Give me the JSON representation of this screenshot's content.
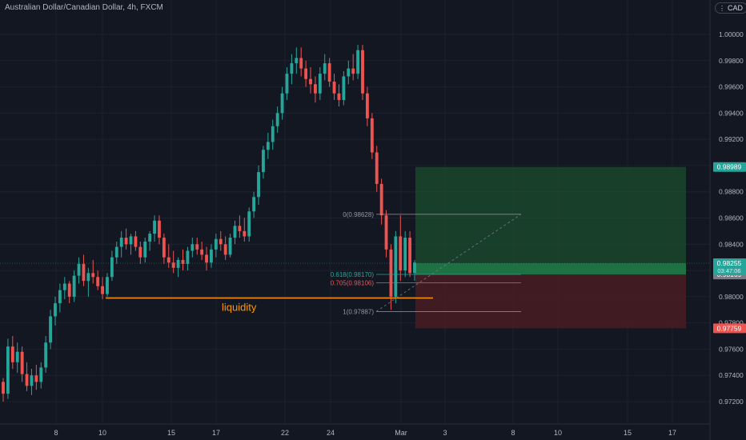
{
  "title": "Australian Dollar/Canadian Dollar, 4h, FXCM",
  "currency": "CAD",
  "currency_icon": "menu-dots-icon",
  "colors": {
    "background": "#131722",
    "up": "#26a69a",
    "down": "#ef5350",
    "grid": "#1e2230",
    "axis_text": "#b2b5be",
    "liquidity": "#ff9800",
    "profit_zone": "#1b4d2c",
    "loss_zone": "#4a1c22"
  },
  "chart_data": {
    "type": "candlestick",
    "x_ticks": [
      "8",
      "10",
      "15",
      "17",
      "22",
      "24",
      "Mar",
      "3",
      "8",
      "10",
      "15",
      "17"
    ],
    "y_ticks": [
      "1.00000",
      "0.99800",
      "0.99600",
      "0.99400",
      "0.99200",
      "0.99000",
      "0.98800",
      "0.98600",
      "0.98400",
      "0.98200",
      "0.98000",
      "0.97800",
      "0.97600",
      "0.97400",
      "0.97200"
    ],
    "ylim": [
      0.971,
      1.0035
    ],
    "candles": [
      [
        0.9735,
        0.9738,
        0.972,
        0.9726
      ],
      [
        0.9726,
        0.9768,
        0.9722,
        0.9762
      ],
      [
        0.9762,
        0.977,
        0.9745,
        0.975
      ],
      [
        0.975,
        0.9765,
        0.9742,
        0.9758
      ],
      [
        0.9758,
        0.9762,
        0.9735,
        0.9741
      ],
      [
        0.9741,
        0.975,
        0.9728,
        0.9732
      ],
      [
        0.9732,
        0.9745,
        0.9725,
        0.974
      ],
      [
        0.974,
        0.9748,
        0.9729,
        0.9735
      ],
      [
        0.9735,
        0.975,
        0.973,
        0.9746
      ],
      [
        0.9746,
        0.977,
        0.9742,
        0.9765
      ],
      [
        0.9765,
        0.979,
        0.976,
        0.9785
      ],
      [
        0.9785,
        0.98,
        0.9778,
        0.9795
      ],
      [
        0.9795,
        0.981,
        0.9788,
        0.9805
      ],
      [
        0.9805,
        0.9815,
        0.9798,
        0.981
      ],
      [
        0.981,
        0.9812,
        0.9795,
        0.98
      ],
      [
        0.98,
        0.982,
        0.9796,
        0.9816
      ],
      [
        0.9816,
        0.983,
        0.981,
        0.9825
      ],
      [
        0.9825,
        0.9832,
        0.9808,
        0.9812
      ],
      [
        0.9812,
        0.9822,
        0.98,
        0.9818
      ],
      [
        0.9818,
        0.9828,
        0.981,
        0.9815
      ],
      [
        0.9815,
        0.982,
        0.9805,
        0.9808
      ],
      [
        0.9808,
        0.9815,
        0.9798,
        0.9802
      ],
      [
        0.9802,
        0.9818,
        0.98,
        0.9815
      ],
      [
        0.9815,
        0.9835,
        0.9812,
        0.983
      ],
      [
        0.983,
        0.9842,
        0.9825,
        0.9838
      ],
      [
        0.9838,
        0.985,
        0.983,
        0.9845
      ],
      [
        0.9845,
        0.9852,
        0.9836,
        0.984
      ],
      [
        0.984,
        0.9848,
        0.9832,
        0.9846
      ],
      [
        0.9846,
        0.985,
        0.9835,
        0.9838
      ],
      [
        0.9838,
        0.9842,
        0.9825,
        0.983
      ],
      [
        0.983,
        0.9845,
        0.9826,
        0.9842
      ],
      [
        0.9842,
        0.985,
        0.9835,
        0.9848
      ],
      [
        0.9848,
        0.9862,
        0.9842,
        0.9858
      ],
      [
        0.9858,
        0.9862,
        0.984,
        0.9845
      ],
      [
        0.9845,
        0.9848,
        0.9825,
        0.983
      ],
      [
        0.983,
        0.984,
        0.9822,
        0.9826
      ],
      [
        0.9826,
        0.9835,
        0.9818,
        0.9822
      ],
      [
        0.9822,
        0.983,
        0.9815,
        0.9828
      ],
      [
        0.9828,
        0.9836,
        0.982,
        0.9825
      ],
      [
        0.9825,
        0.9838,
        0.982,
        0.9835
      ],
      [
        0.9835,
        0.9845,
        0.983,
        0.984
      ],
      [
        0.984,
        0.9845,
        0.9832,
        0.9836
      ],
      [
        0.9836,
        0.9842,
        0.9828,
        0.9832
      ],
      [
        0.9832,
        0.9838,
        0.982,
        0.9826
      ],
      [
        0.9826,
        0.984,
        0.9822,
        0.9836
      ],
      [
        0.9836,
        0.9848,
        0.983,
        0.9844
      ],
      [
        0.9844,
        0.985,
        0.9835,
        0.984
      ],
      [
        0.984,
        0.9846,
        0.9828,
        0.9832
      ],
      [
        0.9832,
        0.9848,
        0.983,
        0.9845
      ],
      [
        0.9845,
        0.9858,
        0.984,
        0.9854
      ],
      [
        0.9854,
        0.9862,
        0.9845,
        0.985
      ],
      [
        0.985,
        0.986,
        0.9842,
        0.9846
      ],
      [
        0.9846,
        0.9868,
        0.9842,
        0.9865
      ],
      [
        0.9865,
        0.988,
        0.986,
        0.9876
      ],
      [
        0.9876,
        0.99,
        0.987,
        0.9895
      ],
      [
        0.9895,
        0.9915,
        0.989,
        0.9912
      ],
      [
        0.9912,
        0.9925,
        0.9905,
        0.9918
      ],
      [
        0.9918,
        0.9935,
        0.9912,
        0.993
      ],
      [
        0.993,
        0.9945,
        0.9925,
        0.994
      ],
      [
        0.994,
        0.996,
        0.9935,
        0.9955
      ],
      [
        0.9955,
        0.9975,
        0.995,
        0.997
      ],
      [
        0.997,
        0.9985,
        0.9962,
        0.9978
      ],
      [
        0.9978,
        0.999,
        0.997,
        0.9982
      ],
      [
        0.9982,
        0.999,
        0.9968,
        0.9974
      ],
      [
        0.9974,
        0.998,
        0.996,
        0.9966
      ],
      [
        0.9966,
        0.9975,
        0.9955,
        0.9962
      ],
      [
        0.9962,
        0.9968,
        0.9948,
        0.9955
      ],
      [
        0.9955,
        0.9975,
        0.995,
        0.997
      ],
      [
        0.997,
        0.9985,
        0.9965,
        0.9978
      ],
      [
        0.9978,
        0.9982,
        0.996,
        0.9964
      ],
      [
        0.9964,
        0.997,
        0.995,
        0.9955
      ],
      [
        0.9955,
        0.9962,
        0.9945,
        0.995
      ],
      [
        0.995,
        0.9972,
        0.9946,
        0.9968
      ],
      [
        0.9968,
        0.998,
        0.9962,
        0.9974
      ],
      [
        0.9974,
        0.9985,
        0.9965,
        0.997
      ],
      [
        0.997,
        0.9992,
        0.9966,
        0.9988
      ],
      [
        0.9988,
        0.9992,
        0.995,
        0.9955
      ],
      [
        0.9955,
        0.996,
        0.993,
        0.9936
      ],
      [
        0.9936,
        0.994,
        0.9905,
        0.991
      ],
      [
        0.991,
        0.9915,
        0.988,
        0.9886
      ],
      [
        0.9886,
        0.989,
        0.9855,
        0.9862
      ],
      [
        0.9862,
        0.9866,
        0.983,
        0.9836
      ],
      [
        0.9836,
        0.984,
        0.979,
        0.98
      ],
      [
        0.98,
        0.985,
        0.9795,
        0.9846
      ],
      [
        0.9846,
        0.9862,
        0.9812,
        0.982
      ],
      [
        0.982,
        0.985,
        0.9815,
        0.9845
      ],
      [
        0.9845,
        0.985,
        0.9815,
        0.9818
      ],
      [
        0.9818,
        0.9828,
        0.9812,
        0.9826
      ]
    ],
    "levels": [
      {
        "label": "0(0.98628)",
        "value": 0.98628
      },
      {
        "label": "0.618(0.98170)",
        "value": 0.9817
      },
      {
        "label": "0.705(0.98106)",
        "value": 0.98106
      },
      {
        "label": "1(0.97887)",
        "value": 0.97887
      }
    ],
    "liquidity_level": 0.9799,
    "annotation": "liquidity",
    "position": {
      "entry": 0.98169,
      "take_profit": 0.98989,
      "stop_loss": 0.97759
    },
    "current_price": {
      "price": "0.98255",
      "countdown": "03:47:06"
    },
    "price_labels": [
      {
        "value": "0.98989",
        "price": 0.98989,
        "color": "#26a69a"
      },
      {
        "value": "0.98169",
        "price": 0.98169,
        "color": "#787b86"
      },
      {
        "value": "0.97759",
        "price": 0.97759,
        "color": "#ef5350"
      }
    ]
  }
}
